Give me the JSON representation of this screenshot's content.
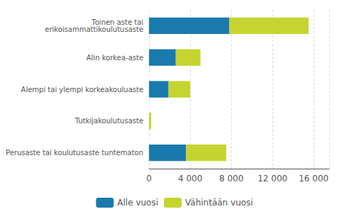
{
  "chart_data": {
    "type": "bar",
    "orientation": "horizontal",
    "stacked": true,
    "categories": [
      "Toinen aste tai\nerikoisammattikoulutusaste",
      "Alin korkea-aste",
      "Alempi tai ylempi korkeakouluaste",
      "Tutkijakoulutusaste",
      "Perusaste tai koulutusaste tuntematon"
    ],
    "series": [
      {
        "name": "Alle vuosi",
        "color": "#1a7aad",
        "values": [
          7800,
          2600,
          1900,
          0,
          3600
        ]
      },
      {
        "name": "Vähintään vuosi",
        "color": "#c5d430",
        "values": [
          7700,
          2400,
          2100,
          200,
          3900
        ]
      }
    ],
    "xlim": [
      0,
      17500
    ],
    "xticks": [
      0,
      {
        "value": 4000,
        "label": "4 000"
      },
      {
        "value": 8000,
        "label": "8 000"
      },
      {
        "value": 12000,
        "label": "12 000"
      },
      {
        "value": 16000,
        "label": "16 000"
      }
    ],
    "grid": true,
    "legend": "bottom"
  }
}
